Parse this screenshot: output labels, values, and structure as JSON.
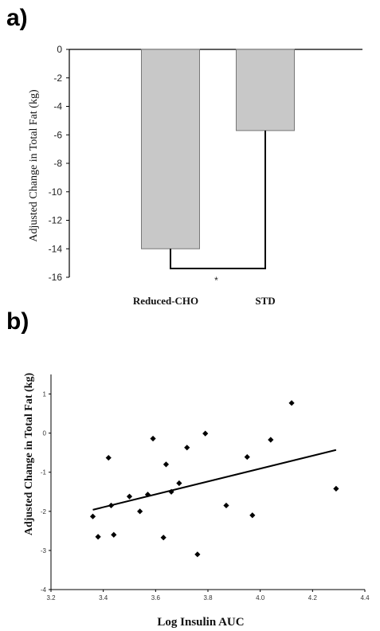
{
  "chart_data": [
    {
      "panel_label": "a)",
      "type": "bar",
      "categories": [
        "Reduced-CHO",
        "STD"
      ],
      "values": [
        -14,
        -5.7
      ],
      "ylabel": "Adjusted Change in Total Fat (kg)",
      "xlabel": "",
      "ylim": [
        -16,
        0
      ],
      "yticks": [
        0,
        -2,
        -4,
        -6,
        -8,
        -10,
        -12,
        -14,
        -16
      ],
      "bar_color": "#c8c8c8",
      "annotation": "*"
    },
    {
      "panel_label": "b)",
      "type": "scatter",
      "xlabel": "Log Insulin AUC",
      "ylabel": "Adjusted Change in Total Fat (kg)",
      "xlim": [
        3.2,
        4.4
      ],
      "ylim": [
        -4,
        1.5
      ],
      "xticks": [
        "3.2",
        "3.4",
        "3.6",
        "3.8",
        "4.0",
        "4.2",
        "4.4"
      ],
      "yticks": [
        "1",
        "0",
        "-1",
        "-2",
        "-3",
        "-4"
      ],
      "points": [
        {
          "x": 3.36,
          "y": -2.13
        },
        {
          "x": 3.38,
          "y": -2.65
        },
        {
          "x": 3.42,
          "y": -0.63
        },
        {
          "x": 3.43,
          "y": -1.85
        },
        {
          "x": 3.44,
          "y": -2.6
        },
        {
          "x": 3.5,
          "y": -1.62
        },
        {
          "x": 3.54,
          "y": -2.0
        },
        {
          "x": 3.57,
          "y": -1.57
        },
        {
          "x": 3.59,
          "y": -0.14
        },
        {
          "x": 3.63,
          "y": -2.67
        },
        {
          "x": 3.64,
          "y": -0.8
        },
        {
          "x": 3.66,
          "y": -1.5
        },
        {
          "x": 3.69,
          "y": -1.28
        },
        {
          "x": 3.72,
          "y": -0.37
        },
        {
          "x": 3.76,
          "y": -3.1
        },
        {
          "x": 3.79,
          "y": -0.01
        },
        {
          "x": 3.87,
          "y": -1.85
        },
        {
          "x": 3.95,
          "y": -0.61
        },
        {
          "x": 3.97,
          "y": -2.1
        },
        {
          "x": 4.04,
          "y": -0.17
        },
        {
          "x": 4.12,
          "y": 0.77
        },
        {
          "x": 4.29,
          "y": -1.42
        }
      ],
      "trendline": {
        "x": [
          3.36,
          4.29
        ],
        "y": [
          -1.96,
          -0.43
        ]
      }
    }
  ]
}
